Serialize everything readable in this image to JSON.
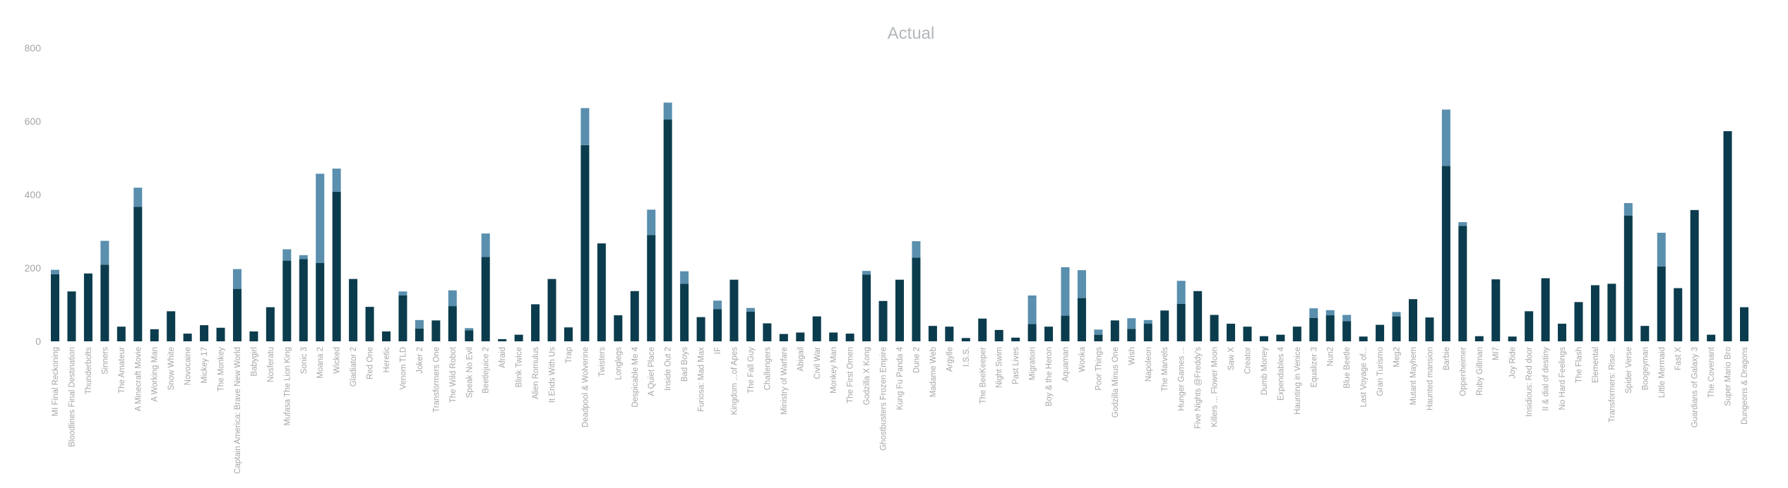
{
  "chart_data": {
    "type": "bar",
    "title": "Actual",
    "xlabel": "",
    "ylabel": "",
    "ylim": [
      0,
      800
    ],
    "yticks": [
      0,
      200,
      400,
      600,
      800
    ],
    "grid": false,
    "legend": "none",
    "colors": {
      "base": "#0b3c4d",
      "top": "#5a8fae"
    },
    "categories": [
      "MI Final Reckoning",
      "Bloodlines Final Destination",
      "Thunderbolts",
      "Sinners",
      "The Amateur",
      "A Minecraft Movie",
      "A Working Man",
      "Snow White",
      "Novocaine",
      "Mickey 17",
      "The Monkey",
      "Captain America: Brave New World",
      "Babygirl",
      "Nosferatu",
      "Mufasa The Lion King",
      "Sonic 3",
      "Moana 2",
      "Wicked",
      "Gladiator 2",
      "Red One",
      "Heretic",
      "Venom TLD",
      "Joker 2",
      "Transformers One",
      "The Wild Robot",
      "Speak No Evil",
      "Beetlejuice 2",
      "Afraid",
      "Blink Twice",
      "Alien Romulus",
      "It Ends With Us",
      "Trap",
      "Deadpool & Wolverine",
      "Twisters",
      "Longlegs",
      "Despicable Me 4",
      "A Quiet Place",
      "Inside Out 2",
      "Bad Boys",
      "Furiosa: Mad Max",
      "IF",
      "Kingdom ...of Apes",
      "The Fall Guy",
      "Challengers",
      "Ministry of Warfare",
      "Abigail",
      "Civil War",
      "Monkey Man",
      "The First Omen",
      "Godzilla X Kong",
      "Ghostbusters Frozen Empire",
      "Kung Fu Panda 4",
      "Dune 2",
      "Madame Web",
      "Argylle",
      "I.S.S.",
      "The BeeKeeper",
      "Night Swim",
      "Past Lives",
      "Migration",
      "Boy & the Heron",
      "Aquaman",
      "Wonka",
      "Poor Things",
      "Godzilla Minus One",
      "Wish",
      "Napoleon",
      "The Marvels",
      "Hunger Games ...",
      "Five Nights @Freddy's",
      "Killers ... Flower Moon",
      "Saw X",
      "Creator",
      "Dumb Money",
      "Expendables 4",
      "Haunting in Venice",
      "Equalizer 3",
      "Nun2",
      "Blue Beetle",
      "Last Voyage of...",
      "Gran Turismo",
      "Meg2",
      "Mutant Mayhem",
      "Haunted mansion",
      "Barbie",
      "Oppenheimer",
      "Ruby Gillman",
      "MI7",
      "Joy Ride",
      "Insidious: Red door",
      "II & dial of destiny",
      "No Hard Feelings",
      "The Flash",
      "Elemental",
      "Transformers: Rise...",
      "Spider Verse",
      "Boogeyman",
      "Little Mermaid",
      "Fast X",
      "Guardians of Galaxy 3",
      "The Covenant",
      "Super Mario Bro",
      "Dungeons & Dragons"
    ],
    "series": [
      {
        "values": [
          183,
          136,
          185,
          209,
          40,
          367,
          33,
          82,
          21,
          44,
          37,
          143,
          27,
          93,
          220,
          224,
          214,
          408,
          170,
          94,
          27,
          125,
          35,
          57,
          96,
          30,
          230,
          6,
          18,
          101,
          170,
          38,
          535,
          267,
          71,
          137,
          290,
          605,
          157,
          66,
          88,
          168,
          81,
          49,
          20,
          24,
          68,
          24,
          21,
          182,
          110,
          168,
          228,
          42,
          40,
          9,
          62,
          31,
          10,
          47,
          40,
          70,
          118,
          18,
          57,
          34,
          48,
          84,
          102,
          137,
          72,
          48,
          40,
          14,
          18,
          40,
          64,
          71,
          55,
          13,
          45,
          68,
          115,
          65,
          478,
          315,
          14,
          169,
          13,
          82,
          172,
          48,
          107,
          153,
          157,
          343,
          42,
          204,
          145,
          358,
          18,
          573,
          93
        ]
      },
      {
        "values": [
          12,
          0,
          0,
          65,
          0,
          52,
          0,
          0,
          0,
          0,
          0,
          54,
          0,
          0,
          31,
          11,
          243,
          63,
          0,
          0,
          0,
          11,
          23,
          0,
          43,
          6,
          64,
          0,
          0,
          0,
          0,
          0,
          101,
          0,
          0,
          0,
          69,
          46,
          34,
          0,
          23,
          0,
          10,
          0,
          0,
          0,
          0,
          0,
          0,
          10,
          0,
          0,
          45,
          0,
          0,
          0,
          0,
          0,
          0,
          78,
          0,
          132,
          76,
          14,
          0,
          29,
          10,
          0,
          63,
          0,
          0,
          0,
          0,
          0,
          0,
          0,
          26,
          14,
          17,
          0,
          0,
          12,
          0,
          0,
          154,
          10,
          0,
          0,
          0,
          0,
          0,
          0,
          0,
          0,
          0,
          34,
          0,
          92,
          0,
          0,
          0,
          0,
          0
        ]
      }
    ]
  }
}
